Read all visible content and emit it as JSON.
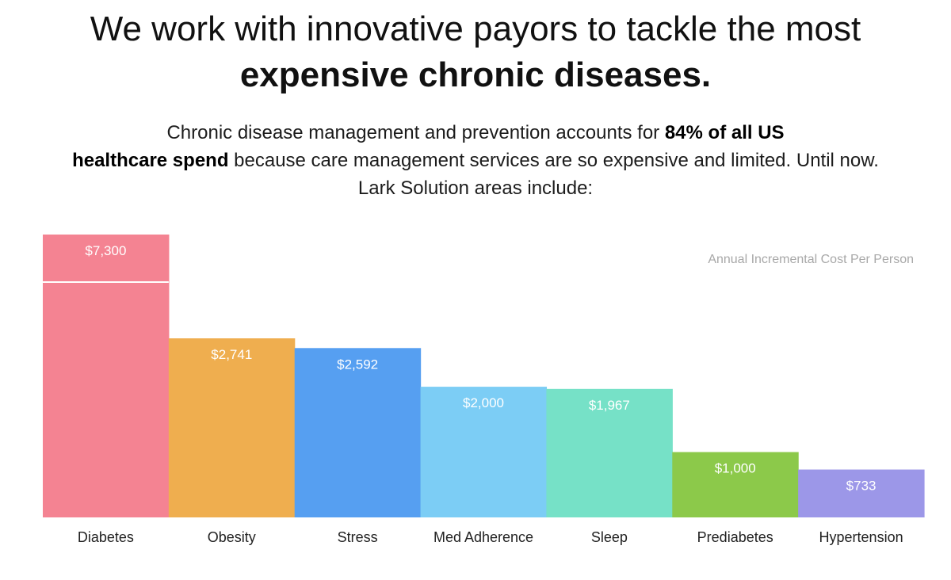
{
  "headline": {
    "line1": "We work with innovative payors to tackle the most",
    "line2": "expensive chronic diseases."
  },
  "subtext": {
    "line1_pre": "Chronic disease management and prevention accounts for ",
    "line1_bold": "84% of all US",
    "line2_bold": "healthcare spend",
    "line2_post": " because care management services are so expensive and limited. Until now.",
    "line3": "Lark Solution areas include:"
  },
  "chart_data": {
    "type": "bar",
    "annotation": "Annual Incremental Cost Per Person",
    "categories": [
      "Diabetes",
      "Obesity",
      "Stress",
      "Med Adherence",
      "Sleep",
      "Prediabetes",
      "Hypertension"
    ],
    "values": [
      7300,
      2741,
      2592,
      2000,
      1967,
      1000,
      733
    ],
    "value_labels": [
      "$7,300",
      "$2,741",
      "$2,592",
      "$2,000",
      "$1,967",
      "$1,000",
      "$733"
    ],
    "colors": [
      "#f48392",
      "#efae4f",
      "#569ff1",
      "#7ccdf5",
      "#76e1c7",
      "#8cc94a",
      "#9c97e8"
    ],
    "axis_break": true,
    "grid": false,
    "legend": "none"
  }
}
